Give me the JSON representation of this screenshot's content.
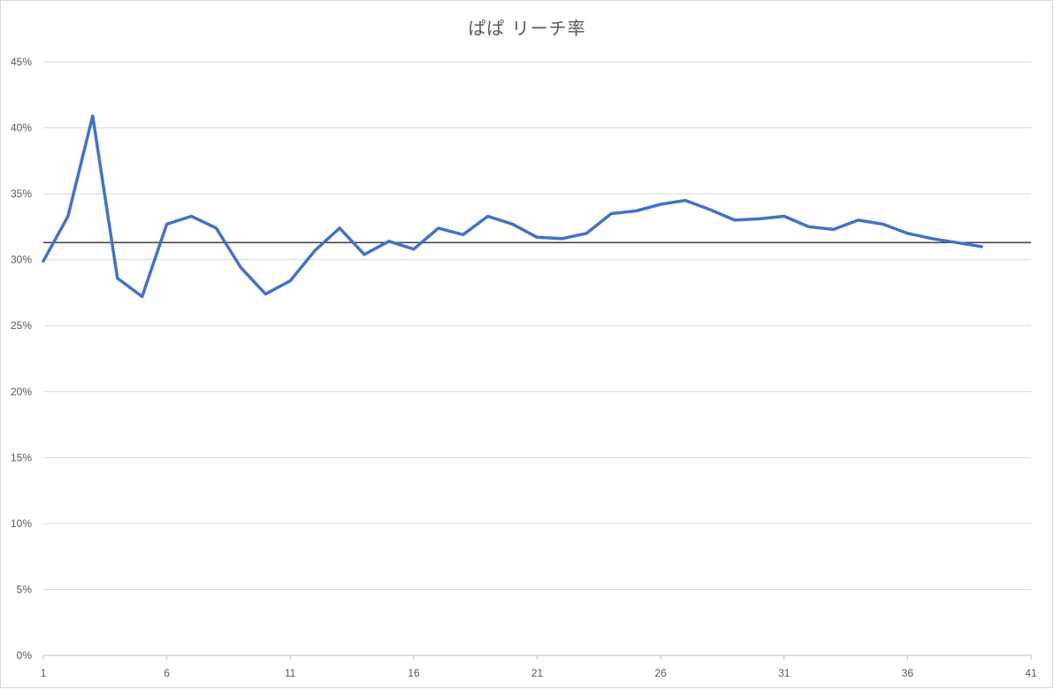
{
  "chart_data": {
    "type": "line",
    "title": "ぱぱ リーチ率",
    "xlabel": "",
    "ylabel": "",
    "xlim": [
      1,
      41
    ],
    "ylim": [
      0,
      0.45
    ],
    "x_ticks": [
      1,
      6,
      11,
      16,
      21,
      26,
      31,
      36,
      41
    ],
    "y_ticks": [
      0,
      0.05,
      0.1,
      0.15,
      0.2,
      0.25,
      0.3,
      0.35,
      0.4,
      0.45
    ],
    "y_tick_labels": [
      "0%",
      "5%",
      "10%",
      "15%",
      "20%",
      "25%",
      "30%",
      "35%",
      "40%",
      "45%"
    ],
    "grid": true,
    "legend": "none",
    "series": [
      {
        "color": "#4472C4",
        "x": [
          1,
          2,
          3,
          4,
          5,
          6,
          7,
          8,
          9,
          10,
          11,
          12,
          13,
          14,
          15,
          16,
          17,
          18,
          19,
          20,
          21,
          22,
          23,
          24,
          25,
          26,
          27,
          28,
          29,
          30,
          31,
          32,
          33,
          34,
          35,
          36,
          37,
          38,
          39
        ],
        "values": [
          0.299,
          0.333,
          0.409,
          0.286,
          0.272,
          0.327,
          0.333,
          0.324,
          0.294,
          0.274,
          0.284,
          0.307,
          0.324,
          0.304,
          0.314,
          0.308,
          0.324,
          0.319,
          0.333,
          0.327,
          0.317,
          0.316,
          0.32,
          0.335,
          0.337,
          0.342,
          0.345,
          0.338,
          0.33,
          0.331,
          0.333,
          0.325,
          0.323,
          0.33,
          0.327,
          0.32,
          0.316,
          0.313,
          0.31
        ]
      }
    ],
    "reference_line": {
      "value": 0.313,
      "color": "#404040"
    }
  }
}
